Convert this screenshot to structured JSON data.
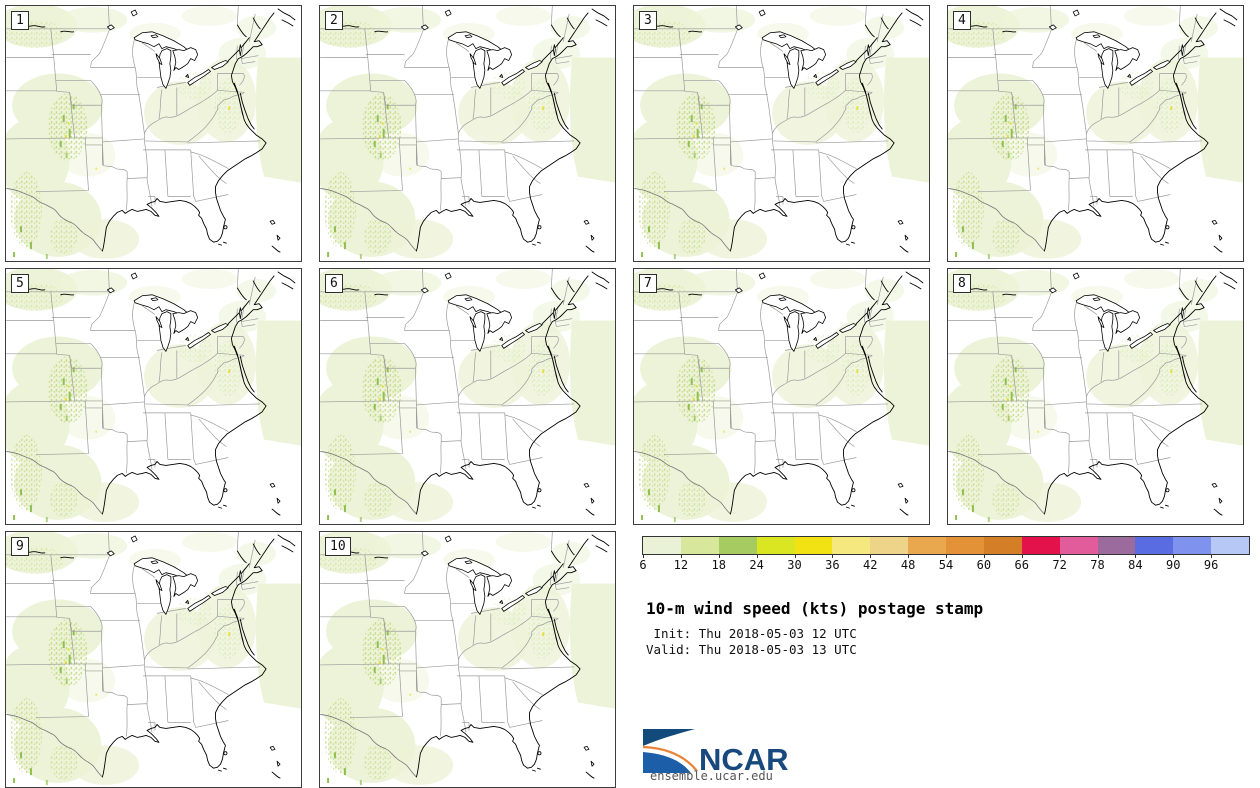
{
  "panels": [
    {
      "label": "1"
    },
    {
      "label": "2"
    },
    {
      "label": "3"
    },
    {
      "label": "4"
    },
    {
      "label": "5"
    },
    {
      "label": "6"
    },
    {
      "label": "7"
    },
    {
      "label": "8"
    },
    {
      "label": "9"
    },
    {
      "label": "10"
    }
  ],
  "colorbar": {
    "tick_labels": [
      "6",
      "12",
      "18",
      "24",
      "30",
      "36",
      "42",
      "48",
      "54",
      "60",
      "66",
      "72",
      "78",
      "84",
      "90",
      "96"
    ],
    "colors": [
      "#e9f1d6",
      "#d7e79c",
      "#a6cb60",
      "#d9e621",
      "#f2e214",
      "#f5e87e",
      "#eed489",
      "#eaa84e",
      "#e39238",
      "#d47e28",
      "#e4124a",
      "#e25b9a",
      "#9c6b9d",
      "#5a6ce2",
      "#7e92ee",
      "#b7c8f6"
    ]
  },
  "legend": {
    "title": "10-m wind speed (kts) postage stamp",
    "init_line": " Init: Thu 2018-05-03 12 UTC",
    "valid_line": "Valid: Thu 2018-05-03 13 UTC"
  },
  "branding": {
    "logo_text": "NCAR",
    "site": "ensemble.ucar.edu"
  },
  "map_colors": {
    "coast": "#000000",
    "state_border": "#9a9a9a",
    "mexico_border": "#787878",
    "shade_light": "#edf3d8",
    "shade_mid": "#c2da85",
    "shade_strong": "#8fbf4f",
    "shade_spot": "#e8df38"
  }
}
